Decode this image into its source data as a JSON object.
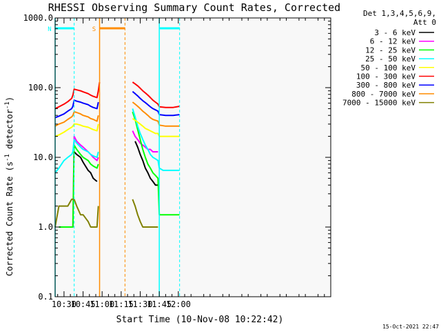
{
  "chart_data": {
    "type": "line",
    "title": "RHESSI Observing Summary Count Rates, Corrected",
    "xlabel": "Start Time (10-Nov-08 10:22:42)",
    "ylabel": "Corrected Count Rate (s^-1 detector^-1)",
    "ylabel_parts": {
      "pre": "Corrected Count Rate (s",
      "sup1": "-1",
      "mid": " detector",
      "sup2": "-1",
      "post": ")"
    },
    "yscale": "log",
    "ylim": [
      0.1,
      1000
    ],
    "y_ticks": [
      {
        "value": 0.1,
        "label": "0.1"
      },
      {
        "value": 1,
        "label": "1.0"
      },
      {
        "value": 10,
        "label": "10.0"
      },
      {
        "value": 100,
        "label": "100.0"
      },
      {
        "value": 1000,
        "label": "1000.0"
      }
    ],
    "xlim_min": [
      23,
      240
    ],
    "x_ticks": [
      {
        "min": 30,
        "label": "10:30"
      },
      {
        "min": 45,
        "label": "10:45"
      },
      {
        "min": 60,
        "label": "11:00"
      },
      {
        "min": 75,
        "label": "11:15"
      },
      {
        "min": 90,
        "label": "11:30"
      },
      {
        "min": 105,
        "label": "11:45"
      },
      {
        "min": 120,
        "label": "12:00"
      }
    ],
    "legend": {
      "placement": "right",
      "header": [
        "Det 1,3,4,5,6,9,",
        "Att 0"
      ]
    },
    "series": [
      {
        "name": "3 - 6 keV",
        "color": "#000000",
        "x": [
          26,
          33,
          37,
          38,
          40,
          43,
          45,
          49,
          51,
          53,
          56,
          57,
          82,
          84,
          86,
          88,
          90,
          92,
          94,
          96,
          98,
          100,
          102,
          104
        ],
        "y": [
          null,
          null,
          null,
          12,
          11,
          10,
          8.5,
          6.5,
          6,
          5,
          4.5,
          null,
          null,
          null,
          17,
          14,
          11,
          9,
          7,
          6,
          5,
          4.5,
          4,
          4
        ]
      },
      {
        "name": "6 - 12 keV",
        "color": "#ff00ff",
        "x": [
          26,
          33,
          37,
          38,
          40,
          43,
          45,
          49,
          51,
          53,
          56,
          57,
          82,
          84,
          86,
          88,
          90,
          92,
          94,
          96,
          98,
          100,
          102,
          104
        ],
        "y": [
          1,
          1,
          1,
          20,
          17,
          15,
          14,
          12,
          11,
          10,
          9,
          10,
          null,
          24,
          20,
          18,
          16,
          15,
          14,
          13,
          13,
          12,
          12,
          12
        ]
      },
      {
        "name": "12 - 25 keV",
        "color": "#00ff00",
        "x": [
          26,
          33,
          37,
          38,
          40,
          43,
          45,
          49,
          51,
          53,
          56,
          57,
          82,
          84,
          86,
          88,
          90,
          92,
          94,
          96,
          98,
          100,
          102,
          104,
          105,
          110,
          116,
          121
        ],
        "y": [
          1,
          1,
          1,
          15,
          13,
          11,
          10,
          9,
          8,
          7.5,
          7,
          8,
          null,
          45,
          35,
          25,
          18,
          13,
          10,
          8,
          7,
          6,
          5.5,
          5,
          1.5,
          1.5,
          1.5,
          1.5
        ]
      },
      {
        "name": "25 - 50 keV",
        "color": "#00ffff",
        "x": [
          23,
          26,
          30,
          33,
          36,
          37,
          38,
          40,
          43,
          45,
          49,
          51,
          53,
          56,
          57,
          82,
          84,
          86,
          88,
          90,
          92,
          94,
          96,
          98,
          100,
          102,
          104,
          105,
          108,
          112,
          116,
          121
        ],
        "y": [
          6,
          7,
          9,
          10,
          11,
          12,
          18,
          16,
          14,
          13,
          12,
          11,
          10.5,
          10,
          12,
          null,
          50,
          38,
          28,
          22,
          18,
          15,
          13,
          11,
          10,
          9.5,
          9,
          7,
          6.5,
          6.5,
          6.5,
          6.5
        ]
      },
      {
        "name": "50 - 100 keV",
        "color": "#ffff00",
        "x": [
          23,
          26,
          30,
          33,
          36,
          37,
          38,
          40,
          43,
          45,
          49,
          51,
          53,
          56,
          57,
          82,
          84,
          86,
          88,
          90,
          92,
          94,
          96,
          98,
          100,
          102,
          104,
          105,
          110,
          116,
          121
        ],
        "y": [
          20,
          21,
          23,
          25,
          27,
          28,
          30,
          30,
          29,
          28,
          27,
          26,
          25,
          24,
          30,
          null,
          36,
          34,
          32,
          30,
          28,
          26,
          25,
          24,
          23,
          22,
          22,
          20,
          20,
          20,
          20
        ]
      },
      {
        "name": "100 - 300 keV",
        "color": "#ff0000",
        "x": [
          23,
          26,
          30,
          33,
          36,
          37,
          38,
          40,
          43,
          45,
          49,
          51,
          53,
          56,
          57,
          58,
          82,
          84,
          86,
          88,
          90,
          92,
          94,
          96,
          98,
          100,
          102,
          104,
          105,
          110,
          116,
          121
        ],
        "y": [
          50,
          53,
          58,
          63,
          70,
          78,
          95,
          93,
          90,
          87,
          82,
          78,
          75,
          72,
          90,
          120,
          null,
          120,
          113,
          106,
          98,
          90,
          84,
          78,
          72,
          66,
          62,
          58,
          53,
          52,
          52,
          54
        ]
      },
      {
        "name": "300 - 800 keV",
        "color": "#0000ff",
        "x": [
          23,
          26,
          30,
          33,
          36,
          37,
          38,
          40,
          43,
          45,
          49,
          51,
          53,
          56,
          57,
          82,
          84,
          86,
          88,
          90,
          92,
          94,
          96,
          98,
          100,
          102,
          104,
          105,
          110,
          116,
          121
        ],
        "y": [
          37,
          39,
          42,
          46,
          50,
          54,
          66,
          64,
          62,
          60,
          57,
          54,
          52,
          50,
          62,
          null,
          88,
          82,
          76,
          70,
          65,
          61,
          57,
          53,
          50,
          48,
          46,
          41,
          40,
          40,
          41
        ]
      },
      {
        "name": "800 - 7000 keV",
        "color": "#ff8c00",
        "x": [
          23,
          26,
          30,
          33,
          36,
          37,
          38,
          40,
          43,
          45,
          49,
          51,
          53,
          56,
          57,
          82,
          84,
          86,
          88,
          90,
          92,
          94,
          96,
          98,
          100,
          102,
          104,
          105,
          110,
          116,
          121
        ],
        "y": [
          28,
          30,
          32,
          35,
          38,
          40,
          45,
          44,
          42,
          40,
          38,
          36,
          35,
          33,
          40,
          null,
          62,
          58,
          54,
          50,
          46,
          43,
          40,
          37,
          35,
          34,
          33,
          29,
          28,
          28,
          28
        ]
      },
      {
        "name": "7000 - 15000 keV",
        "color": "#808000",
        "x": [
          23,
          26,
          30,
          33,
          36,
          37,
          38,
          40,
          43,
          45,
          49,
          51,
          53,
          56,
          57,
          82,
          84,
          86,
          88,
          90,
          92,
          94,
          96,
          98,
          100,
          102,
          104
        ],
        "y": [
          1,
          2,
          2,
          2,
          2.5,
          2.5,
          2.5,
          2,
          1.5,
          1.5,
          1.2,
          1,
          1,
          1,
          2,
          null,
          2.5,
          2,
          1.5,
          1.2,
          1,
          1,
          1,
          1,
          1,
          1,
          1
        ]
      }
    ],
    "attenuator_bar": {
      "label": "S",
      "color": "#ff8c00",
      "start_min": 58,
      "end_min": 78,
      "dashed_min": 78
    },
    "night_bars": [
      {
        "label": "N",
        "color": "#00ffff",
        "start_min": 23,
        "end_min": 38,
        "dashed_min": 38
      },
      {
        "label": "",
        "color": "#00ffff",
        "start_min": 105,
        "end_min": 121,
        "dashed_min": 121
      }
    ]
  },
  "footer": {
    "timestamp": "15-Oct-2021 22:47"
  }
}
